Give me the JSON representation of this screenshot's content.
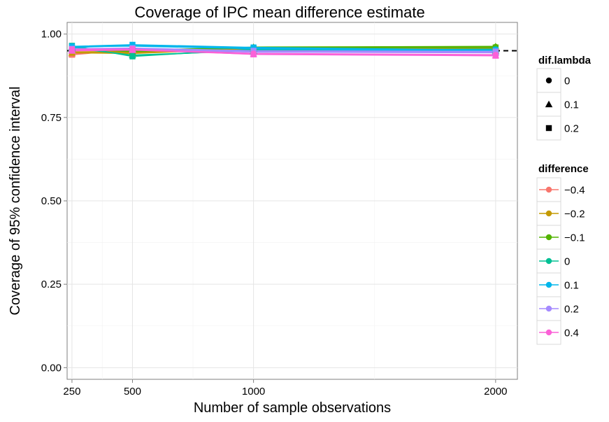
{
  "chart_data": {
    "type": "line",
    "title": "Coverage of IPC mean difference estimate",
    "xlabel": "Number of sample observations",
    "ylabel": "Coverage of 95% confidence interval",
    "x": [
      250,
      500,
      1000,
      2000
    ],
    "x_ticks": [
      "250",
      "500",
      "1000",
      "2000"
    ],
    "xlim": [
      230,
      2090
    ],
    "y_ticks": [
      "0.00",
      "0.25",
      "0.50",
      "0.75",
      "1.00"
    ],
    "ylim": [
      -0.035,
      1.035
    ],
    "reference_line": {
      "y": 0.95,
      "style": "dashed",
      "color": "#000000"
    },
    "grid": true,
    "legend_position": "right",
    "legends": {
      "shape": {
        "title": "dif.lambda",
        "entries": [
          {
            "label": "0",
            "shape": "circle"
          },
          {
            "label": "0.1",
            "shape": "triangle"
          },
          {
            "label": "0.2",
            "shape": "square"
          }
        ]
      },
      "color": {
        "title": "difference",
        "entries": [
          {
            "label": "−0.4",
            "color": "#F8766D"
          },
          {
            "label": "−0.2",
            "color": "#C49A00"
          },
          {
            "label": "−0.1",
            "color": "#53B400"
          },
          {
            "label": "0",
            "color": "#00C094"
          },
          {
            "label": "0.1",
            "color": "#00B6EB"
          },
          {
            "label": "0.2",
            "color": "#A58AFF"
          },
          {
            "label": "0.4",
            "color": "#FB61D7"
          }
        ]
      }
    },
    "series": [
      {
        "difference": "−0.4",
        "dif_lambda": "0",
        "color": "#F8766D",
        "shape": "circle",
        "values": [
          0.952,
          0.95,
          0.951,
          0.95
        ]
      },
      {
        "difference": "−0.4",
        "dif_lambda": "0.1",
        "color": "#F8766D",
        "shape": "triangle",
        "values": [
          0.94,
          0.952,
          0.948,
          0.95
        ]
      },
      {
        "difference": "−0.4",
        "dif_lambda": "0.2",
        "color": "#F8766D",
        "shape": "square",
        "values": [
          0.938,
          0.954,
          0.95,
          0.948
        ]
      },
      {
        "difference": "−0.2",
        "dif_lambda": "0",
        "color": "#C49A00",
        "shape": "circle",
        "values": [
          0.95,
          0.948,
          0.955,
          0.958
        ]
      },
      {
        "difference": "−0.2",
        "dif_lambda": "0.1",
        "color": "#C49A00",
        "shape": "triangle",
        "values": [
          0.944,
          0.942,
          0.956,
          0.96
        ]
      },
      {
        "difference": "−0.2",
        "dif_lambda": "0.2",
        "color": "#C49A00",
        "shape": "square",
        "values": [
          0.946,
          0.945,
          0.953,
          0.956
        ]
      },
      {
        "difference": "−0.1",
        "dif_lambda": "0",
        "color": "#53B400",
        "shape": "circle",
        "values": [
          0.955,
          0.952,
          0.96,
          0.962
        ]
      },
      {
        "difference": "−0.1",
        "dif_lambda": "0.1",
        "color": "#53B400",
        "shape": "triangle",
        "values": [
          0.957,
          0.947,
          0.961,
          0.963
        ]
      },
      {
        "difference": "−0.1",
        "dif_lambda": "0.2",
        "color": "#53B400",
        "shape": "square",
        "values": [
          0.953,
          0.95,
          0.958,
          0.96
        ]
      },
      {
        "difference": "0",
        "dif_lambda": "0",
        "color": "#00C094",
        "shape": "circle",
        "values": [
          0.962,
          0.935,
          0.952,
          0.955
        ]
      },
      {
        "difference": "0",
        "dif_lambda": "0.1",
        "color": "#00C094",
        "shape": "triangle",
        "values": [
          0.958,
          0.937,
          0.95,
          0.953
        ]
      },
      {
        "difference": "0",
        "dif_lambda": "0.2",
        "color": "#00C094",
        "shape": "square",
        "values": [
          0.965,
          0.933,
          0.955,
          0.952
        ]
      },
      {
        "difference": "0.1",
        "dif_lambda": "0",
        "color": "#00B6EB",
        "shape": "circle",
        "values": [
          0.96,
          0.966,
          0.958,
          0.95
        ]
      },
      {
        "difference": "0.1",
        "dif_lambda": "0.1",
        "color": "#00B6EB",
        "shape": "triangle",
        "values": [
          0.962,
          0.964,
          0.956,
          0.948
        ]
      },
      {
        "difference": "0.1",
        "dif_lambda": "0.2",
        "color": "#00B6EB",
        "shape": "square",
        "values": [
          0.963,
          0.968,
          0.96,
          0.952
        ]
      },
      {
        "difference": "0.2",
        "dif_lambda": "0",
        "color": "#A58AFF",
        "shape": "circle",
        "values": [
          0.955,
          0.957,
          0.948,
          0.946
        ]
      },
      {
        "difference": "0.2",
        "dif_lambda": "0.1",
        "color": "#A58AFF",
        "shape": "triangle",
        "values": [
          0.953,
          0.955,
          0.946,
          0.944
        ]
      },
      {
        "difference": "0.2",
        "dif_lambda": "0.2",
        "color": "#A58AFF",
        "shape": "square",
        "values": [
          0.956,
          0.958,
          0.95,
          0.948
        ]
      },
      {
        "difference": "0.4",
        "dif_lambda": "0",
        "color": "#FB61D7",
        "shape": "circle",
        "values": [
          0.952,
          0.954,
          0.942,
          0.938
        ]
      },
      {
        "difference": "0.4",
        "dif_lambda": "0.1",
        "color": "#FB61D7",
        "shape": "triangle",
        "values": [
          0.95,
          0.952,
          0.94,
          0.936
        ]
      },
      {
        "difference": "0.4",
        "dif_lambda": "0.2",
        "color": "#FB61D7",
        "shape": "square",
        "values": [
          0.954,
          0.955,
          0.939,
          0.935
        ]
      }
    ]
  }
}
